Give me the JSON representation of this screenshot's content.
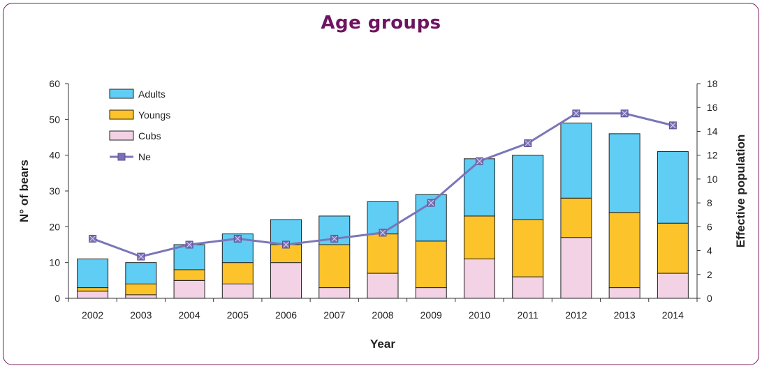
{
  "chart_data": {
    "type": "bar",
    "title": "Age groups",
    "xlabel": "Year",
    "ylabel": "N° of bears",
    "y2label": "Effective population",
    "ylim": [
      0,
      60
    ],
    "y2lim": [
      0,
      18
    ],
    "yticks": [
      0,
      10,
      20,
      30,
      40,
      50,
      60
    ],
    "y2ticks": [
      0,
      2,
      4,
      6,
      8,
      10,
      12,
      14,
      16,
      18
    ],
    "stacked": true,
    "grid": false,
    "legend_position": "top-left",
    "categories": [
      "2002",
      "2003",
      "2004",
      "2005",
      "2006",
      "2007",
      "2008",
      "2009",
      "2010",
      "2011",
      "2012",
      "2013",
      "2014"
    ],
    "series": [
      {
        "name": "Cubs",
        "type": "bar",
        "axis": "left",
        "color": "#f2d2e4",
        "values": [
          2,
          1,
          5,
          4,
          10,
          3,
          7,
          3,
          11,
          6,
          17,
          3,
          7
        ]
      },
      {
        "name": "Youngs",
        "type": "bar",
        "axis": "left",
        "color": "#fcc32a",
        "values": [
          1,
          3,
          3,
          6,
          5,
          12,
          11,
          13,
          12,
          16,
          11,
          21,
          14
        ]
      },
      {
        "name": "Adults",
        "type": "bar",
        "axis": "left",
        "color": "#5fcdf4",
        "values": [
          8,
          6,
          7,
          8,
          7,
          8,
          9,
          13,
          16,
          18,
          21,
          22,
          20
        ]
      },
      {
        "name": "Ne",
        "type": "line",
        "axis": "right",
        "color": "#7a76b8",
        "values": [
          5,
          3.5,
          4.5,
          5,
          4.5,
          5,
          5.5,
          8,
          11.5,
          13,
          15.5,
          15.5,
          14.5
        ]
      }
    ],
    "legend_order": [
      "Adults",
      "Youngs",
      "Cubs",
      "Ne"
    ]
  }
}
